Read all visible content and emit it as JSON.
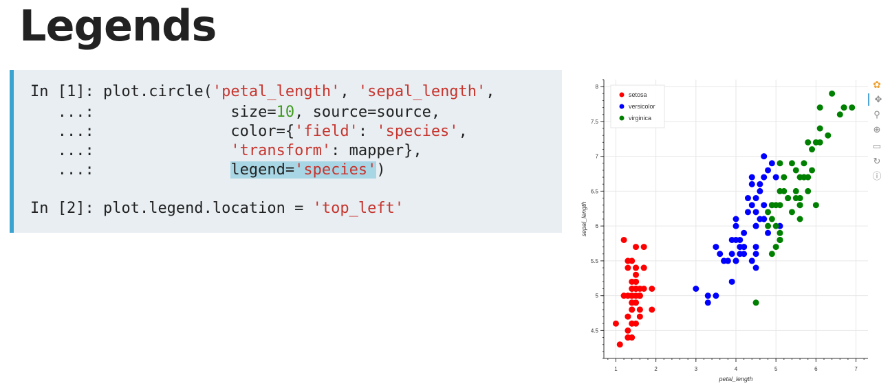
{
  "title": "Legends",
  "code": {
    "line1": {
      "prompt": "In [1]: ",
      "pre": "plot.circle(",
      "s1": "'petal_length'",
      "mid": ", ",
      "s2": "'sepal_length'",
      "post": ","
    },
    "line2": {
      "prompt": "   ...:",
      "pad": "               ",
      "pre": "size=",
      "num": "10",
      "post": ", source=source,"
    },
    "line3": {
      "prompt": "   ...:",
      "pad": "               ",
      "pre": "color={",
      "s1": "'field'",
      "mid": ": ",
      "s2": "'species'",
      "post": ","
    },
    "line4": {
      "prompt": "   ...:",
      "pad": "               ",
      "s1": "'transform'",
      "post": ": mapper},"
    },
    "line5": {
      "prompt": "   ...:",
      "pad": "               ",
      "pre": "legend=",
      "s1": "'species'",
      "post": ")"
    },
    "line6": {
      "prompt": "In [2]: ",
      "pre": "plot.legend.location = ",
      "s1": "'top_left'"
    }
  },
  "chart_data": {
    "type": "scatter",
    "xlabel": "petal_length",
    "ylabel": "sepal_length",
    "xlim": [
      0.7,
      7.3
    ],
    "ylim": [
      4.1,
      8.1
    ],
    "xticks": [
      "1",
      "2",
      "3",
      "4",
      "5",
      "6",
      "7"
    ],
    "yticks": [
      "4.5",
      "5",
      "5.5",
      "6",
      "6.5",
      "7",
      "7.5",
      "8"
    ],
    "grid": true,
    "legend_position": "top-left",
    "series": [
      {
        "name": "setosa",
        "color": "#ff0000",
        "x": [
          1.4,
          1.4,
          1.3,
          1.5,
          1.4,
          1.7,
          1.4,
          1.5,
          1.4,
          1.5,
          1.5,
          1.6,
          1.4,
          1.1,
          1.2,
          1.5,
          1.3,
          1.4,
          1.7,
          1.5,
          1.7,
          1.5,
          1.0,
          1.7,
          1.9,
          1.6,
          1.6,
          1.5,
          1.4,
          1.6,
          1.6,
          1.5,
          1.5,
          1.4,
          1.5,
          1.2,
          1.3,
          1.4,
          1.3,
          1.5,
          1.3,
          1.3,
          1.3,
          1.6,
          1.9,
          1.4,
          1.6,
          1.4,
          1.5,
          1.4
        ],
        "y": [
          5.1,
          4.9,
          4.7,
          4.6,
          5.0,
          5.4,
          4.6,
          5.0,
          4.4,
          4.9,
          5.4,
          4.8,
          4.8,
          4.3,
          5.8,
          5.7,
          5.4,
          5.1,
          5.7,
          5.1,
          5.4,
          5.1,
          4.6,
          5.1,
          4.8,
          5.0,
          5.0,
          5.2,
          5.2,
          4.7,
          4.8,
          5.4,
          5.2,
          5.5,
          4.9,
          5.0,
          5.5,
          4.9,
          4.4,
          5.1,
          5.0,
          4.5,
          4.4,
          5.0,
          5.1,
          4.8,
          5.1,
          4.6,
          5.3,
          5.0
        ]
      },
      {
        "name": "versicolor",
        "color": "#0000ff",
        "x": [
          4.7,
          4.5,
          4.9,
          4.0,
          4.6,
          4.5,
          4.7,
          3.3,
          4.6,
          3.9,
          3.5,
          4.2,
          4.0,
          4.7,
          3.6,
          4.4,
          4.5,
          4.1,
          4.5,
          3.9,
          4.8,
          4.0,
          4.9,
          4.7,
          4.3,
          4.4,
          4.8,
          5.0,
          4.5,
          3.5,
          3.8,
          3.7,
          3.9,
          5.1,
          4.5,
          4.5,
          4.7,
          4.4,
          4.1,
          4.0,
          4.4,
          4.6,
          4.0,
          3.3,
          4.2,
          4.2,
          4.2,
          4.3,
          3.0,
          4.1
        ],
        "y": [
          7.0,
          6.4,
          6.9,
          5.5,
          6.5,
          5.7,
          6.3,
          4.9,
          6.6,
          5.2,
          5.0,
          5.9,
          6.0,
          6.1,
          5.6,
          6.7,
          5.6,
          5.8,
          6.2,
          5.6,
          5.9,
          6.1,
          6.3,
          6.1,
          6.4,
          6.6,
          6.8,
          6.7,
          6.0,
          5.7,
          5.5,
          5.5,
          5.8,
          6.0,
          5.4,
          6.0,
          6.7,
          6.3,
          5.6,
          5.5,
          5.5,
          6.1,
          5.8,
          5.0,
          5.6,
          5.7,
          5.7,
          6.2,
          5.1,
          5.7
        ]
      },
      {
        "name": "virginica",
        "color": "#008000",
        "x": [
          6.0,
          5.1,
          5.9,
          5.6,
          5.8,
          6.6,
          4.5,
          6.3,
          5.8,
          6.1,
          5.1,
          5.3,
          5.5,
          5.0,
          5.1,
          5.3,
          5.5,
          6.7,
          6.9,
          5.0,
          5.7,
          4.9,
          6.7,
          4.9,
          5.7,
          6.0,
          4.8,
          4.9,
          5.6,
          5.8,
          6.1,
          6.4,
          5.6,
          5.1,
          5.6,
          6.1,
          5.6,
          5.5,
          4.8,
          5.4,
          5.6,
          5.1,
          5.1,
          5.9,
          5.7,
          5.2,
          5.0,
          5.2,
          5.4,
          5.1
        ],
        "y": [
          6.3,
          5.8,
          7.1,
          6.3,
          6.5,
          7.6,
          4.9,
          7.3,
          6.7,
          7.2,
          6.5,
          6.4,
          6.8,
          5.7,
          5.8,
          6.4,
          6.5,
          7.7,
          7.7,
          6.0,
          6.9,
          5.6,
          7.7,
          6.3,
          6.7,
          7.2,
          6.2,
          6.1,
          6.4,
          7.2,
          7.4,
          7.9,
          6.4,
          6.3,
          6.1,
          7.7,
          6.3,
          6.4,
          6.0,
          6.9,
          6.7,
          6.9,
          5.8,
          6.8,
          6.7,
          6.7,
          6.3,
          6.5,
          6.2,
          5.9
        ]
      }
    ]
  },
  "toolbar": {
    "tools": [
      "bokeh-logo-icon",
      "pan-icon",
      "box-zoom-icon",
      "wheel-zoom-icon",
      "save-icon",
      "reset-icon",
      "help-icon"
    ]
  }
}
